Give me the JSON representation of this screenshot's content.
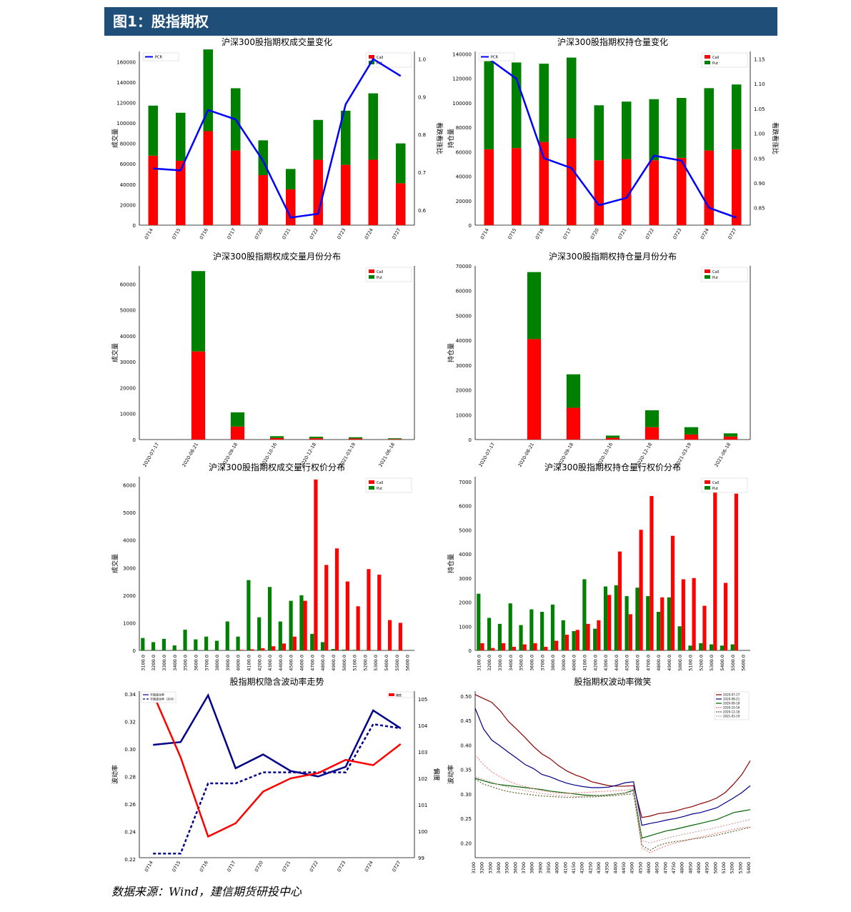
{
  "header": {
    "title": "图1：股指期权"
  },
  "footer": {
    "source": "数据来源：Wind，建信期货研投中心"
  },
  "colors": {
    "call": "#ff0000",
    "put": "#008000",
    "ratio": "#0000ff",
    "header_bg": "#1f4e79"
  },
  "chart_data": [
    {
      "type": "bar",
      "title": "沪深300股指期权成交量变化",
      "ylabel": "成交量",
      "y2label": "看跌看涨比",
      "categories": [
        "0714",
        "0715",
        "0716",
        "0717",
        "0720",
        "0721",
        "0722",
        "0723",
        "0724",
        "0727"
      ],
      "series": [
        {
          "name": "Call",
          "values": [
            68000,
            63000,
            92000,
            73000,
            49000,
            35000,
            64000,
            59000,
            64000,
            41000
          ]
        },
        {
          "name": "Put",
          "values": [
            49000,
            47000,
            80000,
            61000,
            34000,
            20000,
            39000,
            53000,
            65000,
            39000
          ]
        },
        {
          "name": "PCR",
          "axis": "right",
          "values": [
            0.71,
            0.705,
            0.865,
            0.84,
            0.73,
            0.58,
            0.59,
            0.88,
            1.0,
            0.955
          ]
        }
      ],
      "ylim": [
        0,
        170000
      ],
      "yticks": [
        0,
        20000,
        40000,
        60000,
        80000,
        100000,
        120000,
        140000,
        160000
      ],
      "y2lim": [
        0.56,
        1.02
      ],
      "y2ticks": [
        "0.6",
        "0.7",
        "0.8",
        "0.9",
        "1.0"
      ],
      "legend_left": [
        "PCR"
      ],
      "legend_right": [
        "Call",
        "Put"
      ]
    },
    {
      "type": "bar",
      "title": "沪深300股指期权持仓量变化",
      "ylabel": "持仓量",
      "y2label": "看跌看涨比",
      "categories": [
        "0714",
        "0715",
        "0716",
        "0717",
        "0720",
        "0721",
        "0722",
        "0723",
        "0724",
        "0727"
      ],
      "series": [
        {
          "name": "Call",
          "values": [
            62000,
            63000,
            68000,
            71000,
            53000,
            54000,
            53000,
            55000,
            61000,
            62000
          ]
        },
        {
          "name": "Put",
          "values": [
            72000,
            70000,
            64000,
            66000,
            45000,
            47000,
            50000,
            49000,
            51000,
            53000
          ]
        },
        {
          "name": "PCR",
          "axis": "right",
          "values": [
            1.15,
            1.11,
            0.95,
            0.93,
            0.855,
            0.87,
            0.955,
            0.945,
            0.85,
            0.83
          ]
        }
      ],
      "ylim": [
        0,
        142000
      ],
      "yticks": [
        0,
        20000,
        40000,
        60000,
        80000,
        100000,
        120000,
        140000
      ],
      "y2lim": [
        0.815,
        1.165
      ],
      "y2ticks": [
        "0.85",
        "0.90",
        "0.95",
        "1.00",
        "1.05",
        "1.10",
        "1.15"
      ],
      "legend_left": [
        "PCR"
      ],
      "legend_right": [
        "Call",
        "Put"
      ]
    },
    {
      "type": "bar",
      "title": "沪深300股指期权成交量月份分布",
      "ylabel": "成交量",
      "categories": [
        "2020-07-17",
        "2020-08-21",
        "2020-09-18",
        "2020-10-16",
        "2020-12-18",
        "2021-03-19",
        "2021-06-18"
      ],
      "series": [
        {
          "name": "Call",
          "values": [
            0,
            34000,
            5000,
            600,
            500,
            400,
            200
          ]
        },
        {
          "name": "Put",
          "values": [
            0,
            31000,
            5500,
            700,
            600,
            500,
            300
          ]
        }
      ],
      "ylim": [
        0,
        67000
      ],
      "yticks": [
        0,
        10000,
        20000,
        30000,
        40000,
        50000,
        60000
      ],
      "legend_right": [
        "Call",
        "Put"
      ]
    },
    {
      "type": "bar",
      "title": "沪深300股指期权持仓量月份分布",
      "ylabel": "持仓量",
      "categories": [
        "2020-07-17",
        "2020-08-21",
        "2020-09-18",
        "2020-10-16",
        "2020-12-18",
        "2021-03-19",
        "2021-06-18"
      ],
      "series": [
        {
          "name": "Call",
          "values": [
            0,
            40500,
            12800,
            700,
            5000,
            2000,
            1200
          ]
        },
        {
          "name": "Put",
          "values": [
            0,
            27000,
            13500,
            900,
            6800,
            3000,
            1300
          ]
        }
      ],
      "ylim": [
        0,
        70000
      ],
      "yticks": [
        0,
        10000,
        20000,
        30000,
        40000,
        50000,
        60000,
        70000
      ],
      "legend_right": [
        "Call",
        "Put"
      ]
    },
    {
      "type": "bar",
      "title": "沪深300股指期权成交量行权价分布",
      "ylabel": "成交量",
      "categories": [
        "3100.0",
        "3200.0",
        "3300.0",
        "3400.0",
        "3500.0",
        "3600.0",
        "3700.0",
        "3800.0",
        "3900.0",
        "4000.0",
        "4100.0",
        "4200.0",
        "4300.0",
        "4400.0",
        "4500.0",
        "4600.0",
        "4700.0",
        "4800.0",
        "4900.0",
        "5000.0",
        "5100.0",
        "5200.0",
        "5300.0",
        "5400.0",
        "5500.0",
        "5600.0"
      ],
      "series": [
        {
          "name": "Call",
          "values": [
            0,
            0,
            0,
            0,
            0,
            0,
            0,
            0,
            0,
            20,
            40,
            80,
            150,
            250,
            500,
            1800,
            6200,
            3100,
            3700,
            2500,
            1600,
            2950,
            2750,
            1100,
            1000,
            0
          ]
        },
        {
          "name": "Put",
          "values": [
            450,
            300,
            420,
            180,
            750,
            400,
            500,
            350,
            1050,
            500,
            2550,
            1200,
            2300,
            1050,
            1800,
            2000,
            600,
            300,
            50,
            30,
            20,
            10,
            10,
            5,
            5,
            0
          ]
        }
      ],
      "ylim": [
        0,
        6300
      ],
      "yticks": [
        0,
        1000,
        2000,
        3000,
        4000,
        5000,
        6000
      ],
      "legend_right": [
        "Call",
        "Put"
      ]
    },
    {
      "type": "bar",
      "title": "沪深300股指期权持仓量行权价分布",
      "ylabel": "持仓量",
      "categories": [
        "3100.0",
        "3200.0",
        "3300.0",
        "3400.0",
        "3500.0",
        "3600.0",
        "3700.0",
        "3800.0",
        "3900.0",
        "4000.0",
        "4100.0",
        "4200.0",
        "4300.0",
        "4400.0",
        "4500.0",
        "4600.0",
        "4700.0",
        "4800.0",
        "4900.0",
        "5000.0",
        "5100.0",
        "5200.0",
        "5300.0",
        "5400.0",
        "5500.0",
        "5600.0"
      ],
      "series": [
        {
          "name": "Call",
          "values": [
            300,
            100,
            300,
            150,
            250,
            300,
            150,
            400,
            650,
            850,
            1100,
            1250,
            2300,
            4100,
            1500,
            5000,
            6400,
            2200,
            4750,
            2950,
            3000,
            1850,
            6950,
            2800,
            6500,
            0
          ]
        },
        {
          "name": "Put",
          "values": [
            2350,
            1350,
            1100,
            1950,
            1050,
            1700,
            1600,
            1900,
            1250,
            800,
            2950,
            900,
            2650,
            2700,
            2250,
            2600,
            2250,
            1600,
            2200,
            1000,
            200,
            300,
            250,
            200,
            250,
            0
          ]
        }
      ],
      "ylim": [
        0,
        7200
      ],
      "yticks": [
        0,
        1000,
        2000,
        3000,
        4000,
        5000,
        6000,
        7000
      ],
      "legend_right": [
        "Call",
        "Put"
      ]
    },
    {
      "type": "line",
      "title": "股指期权隐含波动率走势",
      "ylabel": "波动率",
      "y2label": "偏度",
      "categories": [
        "0714",
        "0715",
        "0716",
        "0717",
        "0720",
        "0721",
        "0722",
        "0723",
        "0724",
        "0727"
      ],
      "series": [
        {
          "name": "平值波动率",
          "values": [
            0.303,
            0.305,
            0.339,
            0.286,
            0.296,
            0.284,
            0.28,
            0.287,
            0.328,
            0.315
          ]
        },
        {
          "name": "平值波动率（次月）",
          "values": [
            0.224,
            0.224,
            0.275,
            0.275,
            0.283,
            0.283,
            0.283,
            0.283,
            0.318,
            0.315
          ]
        },
        {
          "name": "偏度",
          "axis": "right",
          "values": [
            105.2,
            102.8,
            99.8,
            100.3,
            101.5,
            102.0,
            102.2,
            102.7,
            102.5,
            103.3
          ]
        }
      ],
      "ylim": [
        0.221,
        0.342
      ],
      "yticks": [
        "0.22",
        "0.24",
        "0.26",
        "0.28",
        "0.30",
        "0.32",
        "0.34"
      ],
      "y2lim": [
        99.0,
        105.3
      ],
      "y2ticks": [
        "99",
        "100",
        "101",
        "102",
        "103",
        "104",
        "105"
      ]
    },
    {
      "type": "line",
      "title": "股指期权波动率微笑",
      "ylabel": "波动率",
      "categories": [
        "3100",
        "3200",
        "3300",
        "3400",
        "3500",
        "3600",
        "3700",
        "3800",
        "3900",
        "3950",
        "4000",
        "4100",
        "4150",
        "4200",
        "4250",
        "4300",
        "4350",
        "4400",
        "4450",
        "4500",
        "4550",
        "4600",
        "4650",
        "4700",
        "4750",
        "4800",
        "4850",
        "4900",
        "4950",
        "5000",
        "5100",
        "5200",
        "5300",
        "5400"
      ],
      "series": [
        {
          "name": "2020-07-17",
          "style": "solid",
          "values": [
            0.503,
            0.495,
            0.487,
            0.47,
            0.448,
            0.432,
            0.415,
            0.397,
            0.382,
            0.372,
            0.358,
            0.347,
            0.339,
            0.333,
            0.325,
            0.321,
            0.317,
            0.316,
            0.316,
            0.317,
            0.252,
            0.255,
            0.26,
            0.262,
            0.265,
            0.27,
            0.274,
            0.28,
            0.285,
            0.292,
            0.303,
            0.32,
            0.34,
            0.368
          ]
        },
        {
          "name": "2020-08-21",
          "style": "solid",
          "values": [
            0.475,
            0.433,
            0.41,
            0.398,
            0.385,
            0.373,
            0.36,
            0.352,
            0.34,
            0.335,
            0.328,
            0.322,
            0.318,
            0.315,
            0.313,
            0.313,
            0.314,
            0.318,
            0.323,
            0.325,
            0.236,
            0.24,
            0.243,
            0.247,
            0.25,
            0.254,
            0.259,
            0.262,
            0.267,
            0.272,
            0.282,
            0.292,
            0.303,
            0.317
          ]
        },
        {
          "name": "2020-09-18",
          "style": "solid",
          "values": [
            0.332,
            0.327,
            0.322,
            0.319,
            0.317,
            0.315,
            0.313,
            0.311,
            0.309,
            0.306,
            0.304,
            0.302,
            0.3,
            0.298,
            0.297,
            0.297,
            0.298,
            0.3,
            0.302,
            0.308,
            0.21,
            0.215,
            0.22,
            0.225,
            0.228,
            0.232,
            0.236,
            0.24,
            0.244,
            0.248,
            0.255,
            0.262,
            0.265,
            0.268
          ]
        },
        {
          "name": "2020-10-16",
          "style": "dotted",
          "values": [
            0.38,
            0.36,
            0.345,
            0.335,
            0.326,
            0.32,
            0.315,
            0.311,
            0.307,
            0.304,
            0.302,
            0.301,
            0.302,
            0.303,
            0.304,
            0.305,
            0.306,
            0.307,
            0.308,
            0.31,
            0.19,
            0.18,
            0.188,
            0.195,
            0.2,
            0.204,
            0.208,
            0.212,
            0.216,
            0.22,
            0.224,
            0.228,
            0.231,
            0.233
          ]
        },
        {
          "name": "2020-12-18",
          "style": "dotted",
          "values": [
            0.331,
            0.32,
            0.315,
            0.309,
            0.305,
            0.302,
            0.3,
            0.298,
            0.296,
            0.295,
            0.294,
            0.293,
            0.293,
            0.294,
            0.294,
            0.295,
            0.296,
            0.297,
            0.299,
            0.3,
            0.195,
            0.185,
            0.195,
            0.2,
            0.203,
            0.205,
            0.208,
            0.21,
            0.213,
            0.216,
            0.22,
            0.224,
            0.228,
            0.232
          ]
        },
        {
          "name": "2021-03-19",
          "style": "dotted",
          "values": [
            0.335,
            0.33,
            0.324,
            0.318,
            0.314,
            0.31,
            0.307,
            0.304,
            0.301,
            0.299,
            0.297,
            0.296,
            0.295,
            0.295,
            0.296,
            0.297,
            0.298,
            0.3,
            0.302,
            0.305,
            0.205,
            0.2,
            0.205,
            0.21,
            0.214,
            0.218,
            0.221,
            0.225,
            0.228,
            0.232,
            0.236,
            0.24,
            0.244,
            0.248
          ]
        }
      ],
      "series_colors": [
        "#8b0000",
        "#00008b",
        "#006400",
        "#ff7f7f",
        "#556b2f",
        "#d3a0a0"
      ],
      "ylim": [
        0.17,
        0.51
      ],
      "yticks": [
        "0.20",
        "0.25",
        "0.30",
        "0.35",
        "0.40",
        "0.45",
        "0.50"
      ]
    }
  ]
}
